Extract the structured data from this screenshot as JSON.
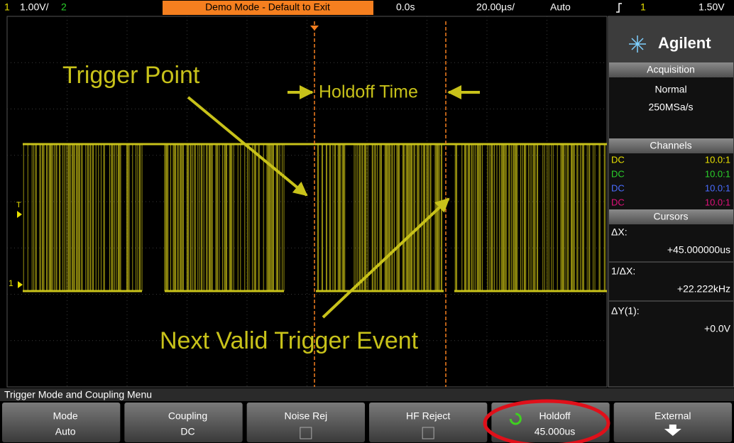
{
  "top_bar": {
    "channel1": "1",
    "scale1": "1.00V/",
    "channel2": "2",
    "demo": "Demo Mode - Default to Exit",
    "delay": "0.0s",
    "timebase": "20.00µs/",
    "mode": "Auto",
    "trigger_source": "1",
    "trigger_level": "1.50V"
  },
  "screen": {
    "trigger_marker": "T",
    "ground_marker": "1",
    "annotations": {
      "trigger_point": "Trigger Point",
      "holdoff_time": "Holdoff Time",
      "next_trigger": "Next Valid Trigger Event"
    }
  },
  "side_panel": {
    "brand": "Agilent",
    "acquisition": {
      "title": "Acquisition",
      "mode": "Normal",
      "rate": "250MSa/s"
    },
    "channels": {
      "title": "Channels",
      "rows": [
        [
          "DC",
          "10.0:1"
        ],
        [
          "DC",
          "10.0:1"
        ],
        [
          "DC",
          "10.0:1"
        ],
        [
          "DC",
          "10.0:1"
        ]
      ]
    },
    "cursors": {
      "title": "Cursors",
      "dx_label": "ΔX:",
      "dx": "+45.000000us",
      "inv_dx_label": "1/ΔX:",
      "inv_dx": "+22.222kHz",
      "dy_label": "ΔY(1):",
      "dy": "+0.0V"
    }
  },
  "menu": {
    "title": "Trigger Mode and Coupling Menu",
    "buttons": [
      [
        "Mode",
        "Auto"
      ],
      [
        "Coupling",
        "DC"
      ],
      [
        "Noise Rej"
      ],
      [
        "HF Reject"
      ],
      [
        "Holdoff",
        "45.000us"
      ],
      [
        "External"
      ]
    ]
  }
}
